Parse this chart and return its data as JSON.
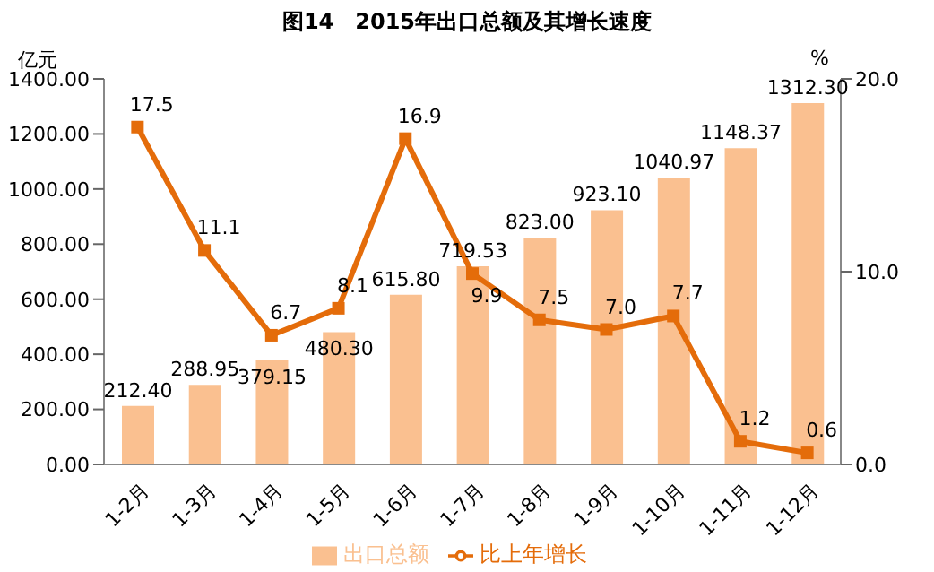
{
  "chart_data": {
    "type": "bar",
    "title": "图14　2015年出口总额及其增长速度",
    "ylabel": "亿元",
    "y2label": "%",
    "categories": [
      "1-2月",
      "1-3月",
      "1-4月",
      "1-5月",
      "1-6月",
      "1-7月",
      "1-8月",
      "1-9月",
      "1-10月",
      "1-11月",
      "1-12月"
    ],
    "series": [
      {
        "name": "出口总额",
        "color": "#fac090",
        "values": [
          212.4,
          288.95,
          379.15,
          480.3,
          615.8,
          719.53,
          823.0,
          923.1,
          1040.97,
          1148.37,
          1312.3
        ],
        "value_labels": [
          "212.40",
          "288.95",
          "379.15",
          "480.30",
          "615.80",
          "719.53",
          "823.00",
          "923.10",
          "1040.97",
          "1148.37",
          "1312.30"
        ]
      },
      {
        "name": "比上年增长",
        "type": "line",
        "axis": "y2",
        "color": "#e46c0a",
        "values": [
          17.5,
          11.1,
          6.7,
          8.1,
          16.9,
          9.9,
          7.5,
          7.0,
          7.7,
          1.2,
          0.6
        ],
        "value_labels": [
          "17.5",
          "11.1",
          "6.7",
          "8.1",
          "16.9",
          "9.9",
          "7.5",
          "7.0",
          "7.7",
          "1.2",
          "0.6"
        ]
      }
    ],
    "ylim": [
      0,
      1400
    ],
    "yticks": [
      {
        "value": 0,
        "label": "0.00"
      },
      {
        "value": 200,
        "label": "200.00"
      },
      {
        "value": 400,
        "label": "400.00"
      },
      {
        "value": 600,
        "label": "600.00"
      },
      {
        "value": 800,
        "label": "800.00"
      },
      {
        "value": 1000,
        "label": "1000.00"
      },
      {
        "value": 1200,
        "label": "1200.00"
      },
      {
        "value": 1400,
        "label": "1400.00"
      }
    ],
    "y2lim": [
      0,
      20
    ],
    "y2ticks": [
      {
        "value": 0,
        "label": "0.0"
      },
      {
        "value": 10,
        "label": "10.0"
      },
      {
        "value": 20,
        "label": "20.0"
      }
    ],
    "legend": "bottom",
    "marker": "square",
    "grid": false
  }
}
